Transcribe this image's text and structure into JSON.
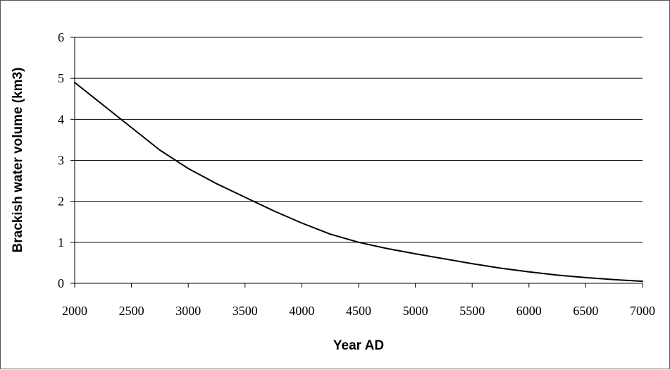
{
  "chart_data": {
    "type": "line",
    "title": "",
    "xlabel": "Year AD",
    "ylabel": "Brackish water volume (km3)",
    "xlim": [
      2000,
      7000
    ],
    "ylim": [
      0,
      6
    ],
    "x_ticks": [
      "2000",
      "2500",
      "3000",
      "3500",
      "4000",
      "4500",
      "5000",
      "5500",
      "6000",
      "6500",
      "7000"
    ],
    "y_ticks": [
      "0",
      "1",
      "2",
      "3",
      "4",
      "5",
      "6"
    ],
    "grid": "horizontal",
    "legend": "none",
    "line_color": "#000000",
    "series": [
      {
        "x": [
          2000,
          2250,
          2500,
          2750,
          3000,
          3250,
          3500,
          3750,
          4000,
          4250,
          4500,
          4750,
          5000,
          5250,
          5500,
          5750,
          6000,
          6250,
          6500,
          6750,
          7000
        ],
        "y": [
          4.9,
          4.35,
          3.8,
          3.25,
          2.8,
          2.43,
          2.1,
          1.77,
          1.47,
          1.2,
          1.0,
          0.85,
          0.72,
          0.6,
          0.48,
          0.37,
          0.28,
          0.2,
          0.14,
          0.09,
          0.05
        ]
      }
    ]
  }
}
